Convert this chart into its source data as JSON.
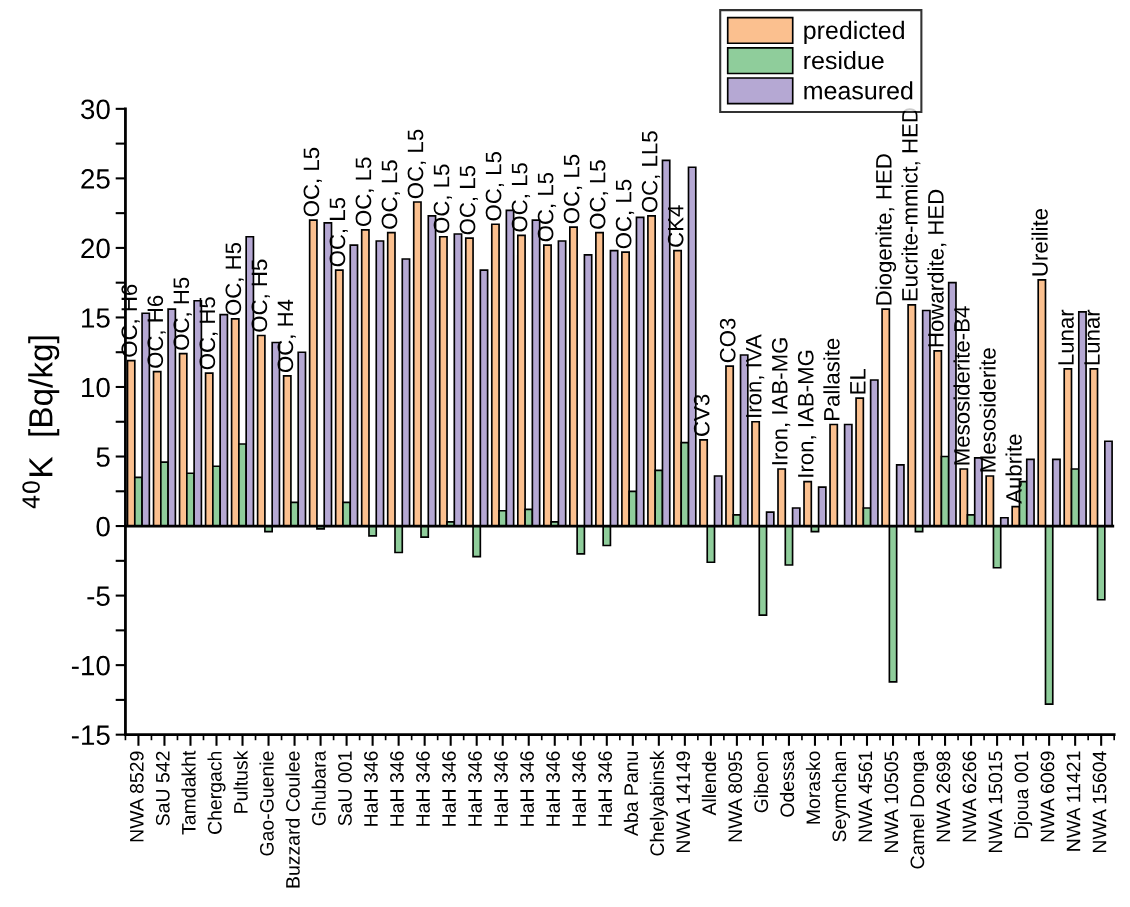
{
  "chart_data": {
    "type": "bar",
    "ylabel": "$^{40}$K  [Bq/kg]",
    "categories": [
      "NWA 8529",
      "SaU 542",
      "Tamdakht",
      "Chergach",
      "Pultusk",
      "Gao-Guenie",
      "Buzzard Coulee",
      "Ghubara",
      "SaU 001",
      "HaH 346",
      "HaH 346",
      "HaH 346",
      "HaH 346",
      "HaH 346",
      "HaH 346",
      "HaH 346",
      "HaH 346",
      "HaH 346",
      "HaH 346",
      "Aba Panu",
      "Chelyabinsk",
      "NWA 14149",
      "Allende",
      "NWA 8095",
      "Gibeon",
      "Odessa",
      "Morasko",
      "Seymchan",
      "NWA 4561",
      "NWA 10505",
      "Camel Donga",
      "NWA 2698",
      "NWA 6266",
      "NWA 15015",
      "Djoua 001",
      "NWA 6069",
      "NWA 11421",
      "NWA 15604"
    ],
    "series": [
      {
        "name": "predicted",
        "color": "#fbc08f",
        "values": [
          11.9,
          11.1,
          12.4,
          11.0,
          14.9,
          13.7,
          10.8,
          22.0,
          18.4,
          21.3,
          21.1,
          23.3,
          20.8,
          20.7,
          21.7,
          20.9,
          20.2,
          21.5,
          21.1,
          19.7,
          22.3,
          19.8,
          6.2,
          11.5,
          7.5,
          4.1,
          3.2,
          7.3,
          9.2,
          15.6,
          15.9,
          12.6,
          4.1,
          3.6,
          1.4,
          17.7,
          11.3,
          11.3
        ],
        "value_labels": [
          "OC, H6",
          "OC, H6",
          "OC, H5",
          "OC, H5",
          "OC, H5",
          "OC, H5",
          "OC, H4",
          "OC, L5",
          "OC, L5",
          "OC, L5",
          "OC, L5",
          "OC, L5",
          "OC, L5",
          "OC, L5",
          "OC, L5",
          "OC, L5",
          "OC, L5",
          "OC, L5",
          "OC, L5",
          "OC, L5",
          "OC, LL5",
          "CK4",
          "CV3",
          "CO3",
          "Iron, IVA",
          "Iron, IAB-MG",
          "Iron, IAB-MG",
          "Pallasite",
          "EL",
          "Diogenite, HED",
          "Eucrite-mmict, HED",
          "Howardite, HED",
          "Mesosiderite-B4",
          "Mesosiderite",
          "Aubrite",
          "Ureilite",
          "Lunar",
          "Lunar"
        ]
      },
      {
        "name": "residue",
        "color": "#8fcd9b",
        "values": [
          3.5,
          4.6,
          3.8,
          4.3,
          5.9,
          -0.4,
          1.7,
          -0.2,
          1.7,
          -0.7,
          -1.9,
          -0.8,
          0.3,
          -2.2,
          1.1,
          1.2,
          0.3,
          -2.0,
          -1.4,
          2.5,
          4.0,
          6.0,
          -2.6,
          0.8,
          -6.4,
          -2.8,
          -0.4,
          null,
          1.3,
          -11.2,
          -0.4,
          5.0,
          0.8,
          -3.0,
          3.2,
          -12.8,
          4.1,
          -5.3
        ]
      },
      {
        "name": "measured",
        "color": "#b5a8d3",
        "values": [
          15.3,
          15.6,
          16.2,
          15.2,
          20.8,
          13.2,
          12.5,
          21.8,
          20.2,
          20.5,
          19.2,
          22.3,
          21.0,
          18.4,
          22.7,
          22.0,
          20.5,
          19.5,
          19.8,
          22.2,
          26.3,
          25.8,
          3.6,
          12.3,
          1.0,
          1.3,
          2.8,
          7.3,
          10.5,
          4.4,
          15.5,
          17.5,
          4.9,
          0.6,
          4.8,
          4.8,
          15.4,
          6.1
        ]
      }
    ],
    "ylim": [
      -15,
      30
    ],
    "yticks": [
      -15,
      {
        "value": -12.5,
        "label": null
      },
      -10,
      {
        "value": -7.5,
        "label": null
      },
      -5,
      {
        "value": -2.5,
        "label": null
      },
      0,
      {
        "value": 2.5,
        "label": null
      },
      5,
      {
        "value": 7.5,
        "label": null
      },
      10,
      {
        "value": 12.5,
        "label": null
      },
      15,
      {
        "value": 17.5,
        "label": null
      },
      20,
      {
        "value": 22.5,
        "label": null
      },
      25,
      {
        "value": 27.5,
        "label": null
      },
      30
    ],
    "ref_lines": [
      {
        "axis": "y",
        "value": 0,
        "color": "#000000",
        "line_style": "solid"
      }
    ],
    "legend": "top right",
    "grid": false
  }
}
